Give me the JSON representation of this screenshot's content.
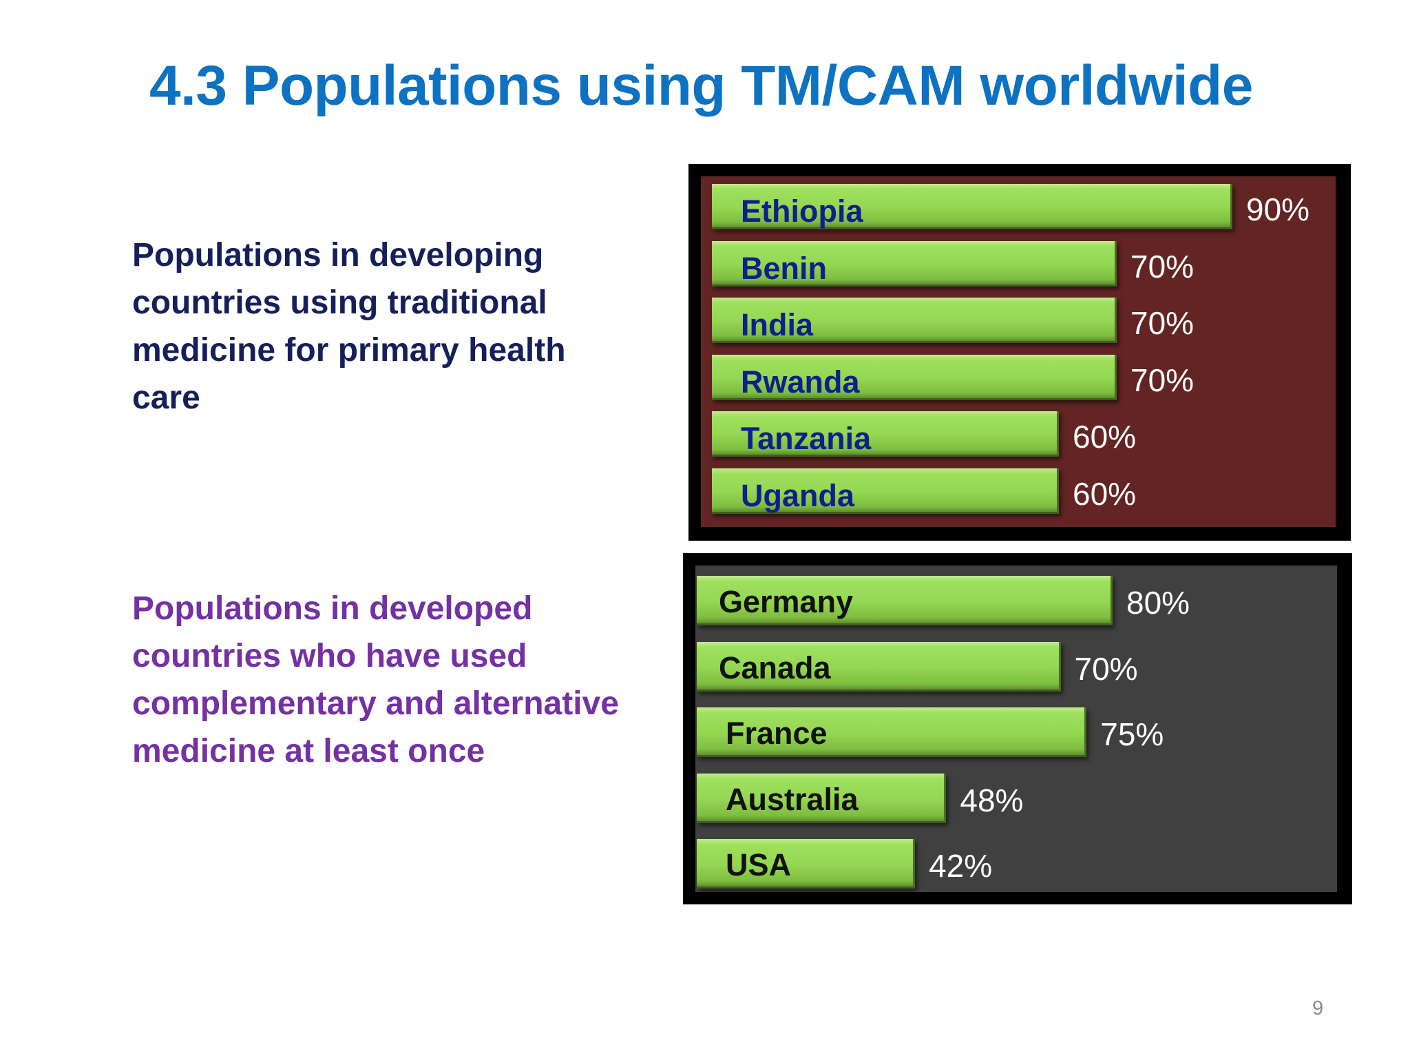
{
  "title": "4.3 Populations using TM/CAM worldwide",
  "description_developing": "Populations in developing countries using traditional medicine for primary health care",
  "description_developed": "Populations in developed countries who have used complementary and alternative medicine at least once",
  "page_number": "9",
  "colors": {
    "title": "#0d72c2",
    "developing_text": "#15205a",
    "developed_text": "#7431a3",
    "bar_fill": "#93d752",
    "panel_1_background": "#632424",
    "panel_2_background": "#404041"
  },
  "chart_data": [
    {
      "type": "bar",
      "orientation": "horizontal",
      "categories": [
        "Ethiopia",
        "Benin",
        "India",
        "Rwanda",
        "Tanzania",
        "Uganda"
      ],
      "values": [
        90,
        70,
        70,
        70,
        60,
        60
      ],
      "value_labels": [
        "90%",
        "70%",
        "70%",
        "70%",
        "60%",
        "60%"
      ],
      "unit": "%",
      "title": "",
      "xlabel": "",
      "ylabel": "",
      "grid": false,
      "legend": "none"
    },
    {
      "type": "bar",
      "orientation": "horizontal",
      "categories": [
        "Germany",
        "Canada",
        "France",
        "Australia",
        "USA"
      ],
      "values": [
        80,
        70,
        75,
        48,
        42
      ],
      "value_labels": [
        "80%",
        "70%",
        "75%",
        "48%",
        "42%"
      ],
      "unit": "%",
      "title": "",
      "xlabel": "",
      "ylabel": "",
      "grid": false,
      "legend": "none"
    }
  ]
}
